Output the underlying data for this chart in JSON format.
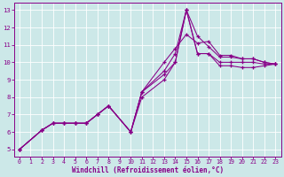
{
  "xlabel": "Windchill (Refroidissement éolien,°C)",
  "bg_color": "#cce8e8",
  "line_color": "#880088",
  "grid_color": "#aacccc",
  "xlim": [
    -0.5,
    23.5
  ],
  "ylim": [
    4.6,
    13.4
  ],
  "xticks": [
    0,
    1,
    2,
    3,
    4,
    5,
    6,
    7,
    8,
    9,
    10,
    11,
    12,
    13,
    14,
    15,
    16,
    17,
    18,
    19,
    20,
    21,
    22,
    23
  ],
  "yticks": [
    5,
    6,
    7,
    8,
    9,
    10,
    11,
    12,
    13
  ],
  "lines": [
    {
      "x": [
        0,
        2,
        3,
        4,
        5,
        6,
        7,
        8,
        10,
        11,
        13,
        14,
        15,
        16,
        17,
        18,
        19,
        20,
        21,
        22,
        23
      ],
      "y": [
        5.0,
        6.1,
        6.5,
        6.5,
        6.5,
        6.5,
        7.0,
        7.5,
        6.0,
        8.3,
        9.5,
        10.5,
        13.0,
        11.5,
        10.9,
        10.3,
        10.3,
        10.2,
        10.2,
        10.0,
        9.9
      ]
    },
    {
      "x": [
        0,
        2,
        3,
        4,
        5,
        6,
        7,
        8,
        10,
        11,
        13,
        14,
        15,
        16,
        17,
        18,
        19,
        20,
        21,
        22,
        23
      ],
      "y": [
        5.0,
        6.1,
        6.5,
        6.5,
        6.5,
        6.5,
        7.0,
        7.5,
        6.0,
        8.3,
        10.0,
        10.8,
        11.6,
        11.1,
        11.2,
        10.4,
        10.4,
        10.2,
        10.2,
        10.0,
        9.9
      ]
    },
    {
      "x": [
        0,
        2,
        3,
        4,
        5,
        6,
        7,
        8,
        10,
        11,
        13,
        14,
        15,
        16,
        17,
        18,
        19,
        20,
        21,
        22,
        23
      ],
      "y": [
        5.0,
        6.1,
        6.5,
        6.5,
        6.5,
        6.5,
        7.0,
        7.5,
        6.0,
        8.3,
        9.3,
        10.0,
        13.0,
        10.5,
        10.5,
        10.0,
        10.0,
        10.0,
        10.0,
        9.9,
        9.9
      ]
    },
    {
      "x": [
        0,
        2,
        3,
        4,
        5,
        6,
        7,
        8,
        10,
        11,
        13,
        14,
        15,
        16,
        17,
        18,
        19,
        20,
        21,
        22,
        23
      ],
      "y": [
        5.0,
        6.1,
        6.5,
        6.5,
        6.5,
        6.5,
        7.0,
        7.5,
        6.0,
        8.0,
        9.0,
        10.0,
        13.0,
        10.5,
        10.5,
        9.8,
        9.8,
        9.7,
        9.7,
        9.8,
        9.9
      ]
    }
  ],
  "xlabel_fontsize": 5.5,
  "tick_fontsize": 4.8,
  "ytick_fontsize": 5.2
}
